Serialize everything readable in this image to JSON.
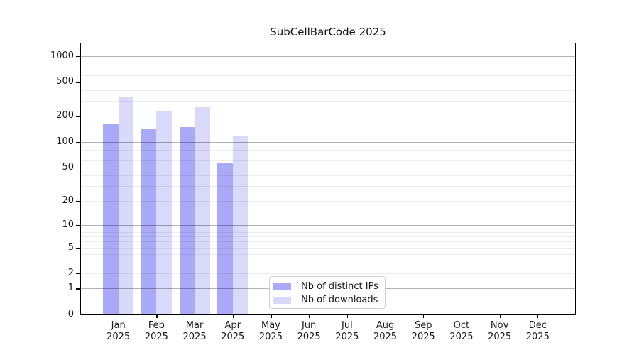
{
  "chart_data": {
    "type": "bar",
    "title": "SubCellBarCode 2025",
    "categories": [
      "Jan 2025",
      "Feb 2025",
      "Mar 2025",
      "Apr 2025",
      "May 2025",
      "Jun 2025",
      "Jul 2025",
      "Aug 2025",
      "Sep 2025",
      "Oct 2025",
      "Nov 2025",
      "Dec 2025"
    ],
    "series": [
      {
        "name": "Nb of distinct IPs",
        "color": "#a9a9f8",
        "values": [
          160,
          143,
          150,
          57,
          0,
          0,
          0,
          0,
          0,
          0,
          0,
          0
        ]
      },
      {
        "name": "Nb of downloads",
        "color": "#d9d9fa",
        "values": [
          340,
          226,
          260,
          117,
          0,
          0,
          0,
          0,
          0,
          0,
          0,
          0
        ]
      }
    ],
    "xlabel": "",
    "ylabel": "",
    "yscale": "symlog",
    "ylim": [
      0,
      1430
    ],
    "yticks": [
      0,
      1,
      2,
      5,
      10,
      20,
      50,
      100,
      200,
      500,
      1000
    ],
    "major_gridlines": [
      1,
      10,
      100,
      1000
    ],
    "minor_gridline_decades": [
      1,
      10,
      100
    ],
    "legend_position": "lower center",
    "legend_labels": [
      "Nb of distinct IPs",
      "Nb of downloads"
    ]
  },
  "colors": {
    "bar_distinct_ips": "#a9a9f8",
    "bar_downloads": "#d9d9fa",
    "major_grid": "#b0b0b0",
    "minor_grid": "#ededed",
    "spine": "#000000",
    "text": "#1a1a1a",
    "background": "#ffffff"
  }
}
